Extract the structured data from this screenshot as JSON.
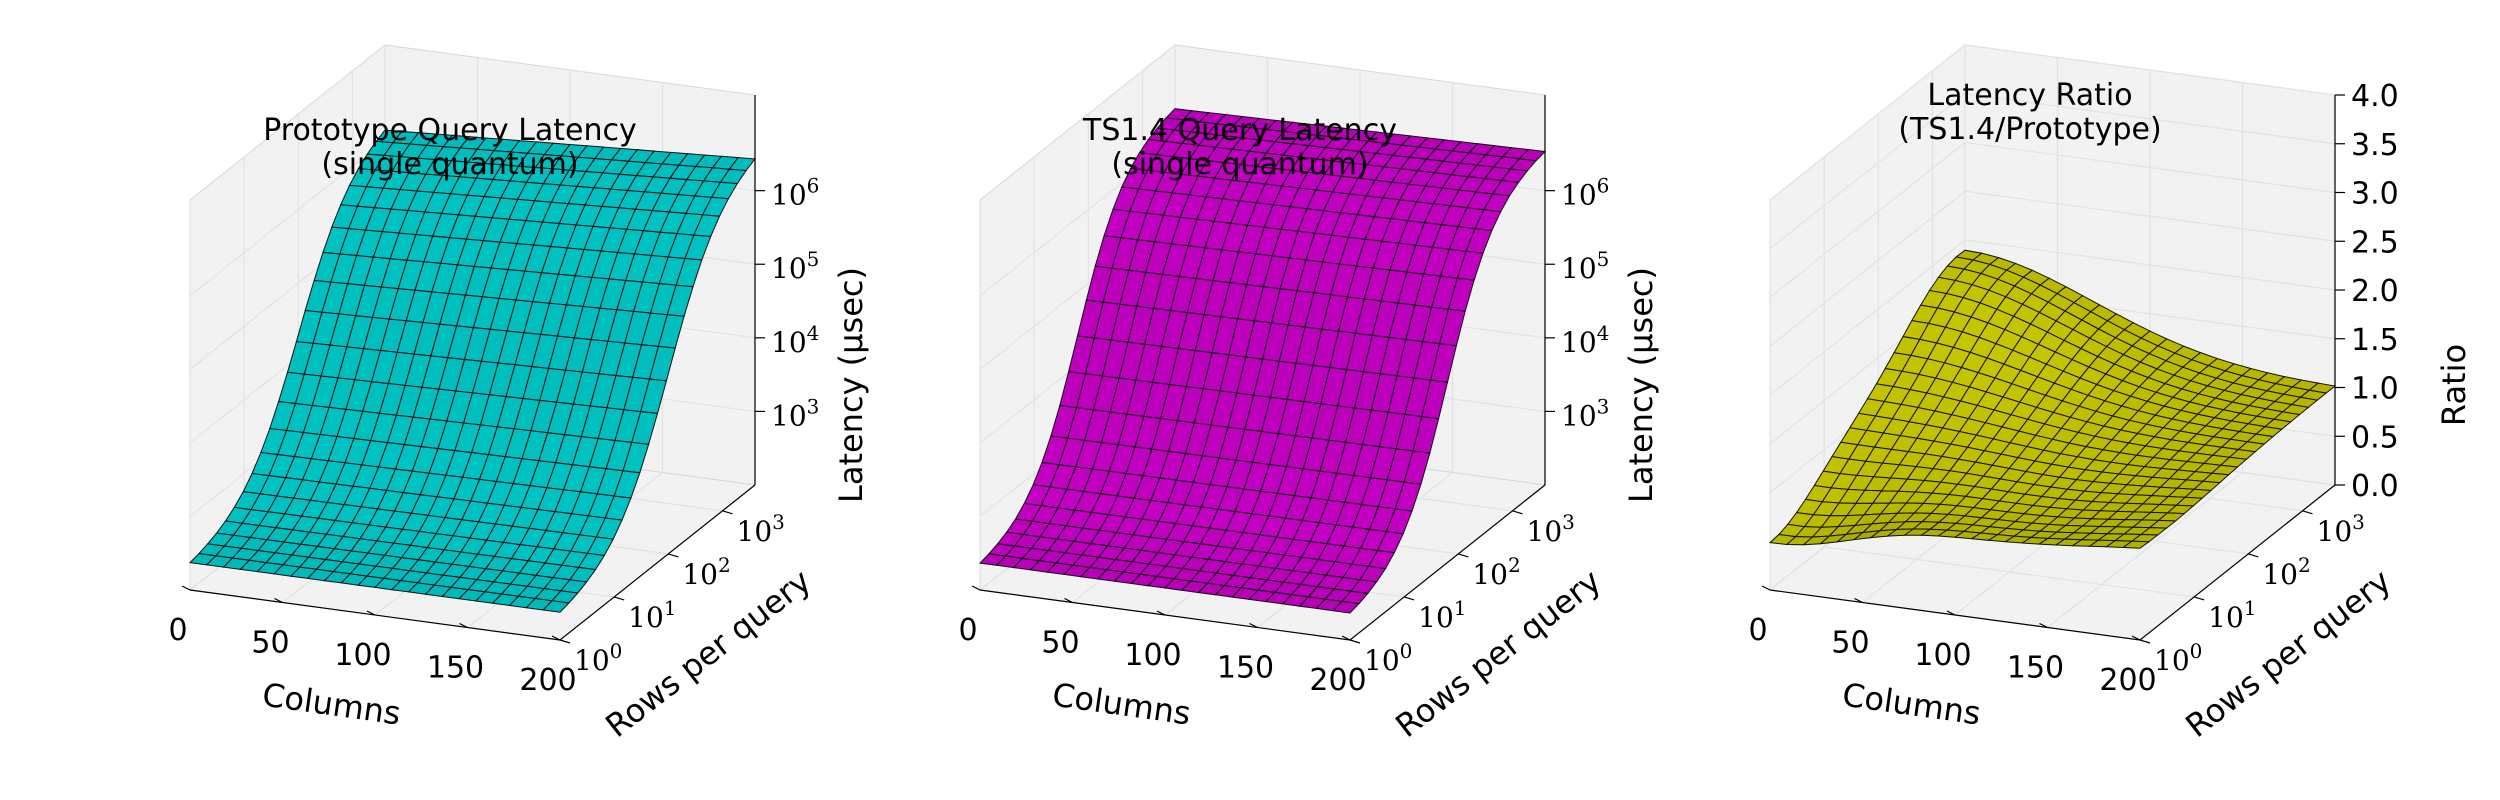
{
  "chart_data": [
    {
      "type": "surface",
      "title_lines": [
        "Prototype Query Latency",
        "(single quantum)"
      ],
      "xlabel": "Columns",
      "ylabel": "Rows per query",
      "zlabel": "Latency (μsec)",
      "x_ticks": [
        "0",
        "50",
        "100",
        "150",
        "200"
      ],
      "y_ticks": [
        {
          "base": "10",
          "exp": "0"
        },
        {
          "base": "10",
          "exp": "1"
        },
        {
          "base": "10",
          "exp": "2"
        },
        {
          "base": "10",
          "exp": "3"
        }
      ],
      "z_ticks": [
        {
          "base": "10",
          "exp": "3"
        },
        {
          "base": "10",
          "exp": "4"
        },
        {
          "base": "10",
          "exp": "5"
        },
        {
          "base": "10",
          "exp": "6"
        }
      ],
      "xlim": [
        0,
        200
      ],
      "ylim_log10": [
        0,
        3.6
      ],
      "zlim_log10": [
        2.0,
        7.3
      ],
      "z_scale": "log",
      "y_scale": "log",
      "surface_color": "#00c0c0",
      "grid": true,
      "surface_model": {
        "kind": "sigmoid",
        "center_log10_rows": 2.0,
        "steepness": 2.0,
        "low_log10_latency": 2.3,
        "high_log10_latency_at_0_cols": 6.3,
        "high_log10_latency_at_200_cols": 6.6
      }
    },
    {
      "type": "surface",
      "title_lines": [
        "TS1.4 Query Latency",
        "(single quantum)"
      ],
      "xlabel": "Columns",
      "ylabel": "Rows per query",
      "zlabel": "Latency (μsec)",
      "x_ticks": [
        "0",
        "50",
        "100",
        "150",
        "200"
      ],
      "y_ticks": [
        {
          "base": "10",
          "exp": "0"
        },
        {
          "base": "10",
          "exp": "1"
        },
        {
          "base": "10",
          "exp": "2"
        },
        {
          "base": "10",
          "exp": "3"
        }
      ],
      "z_ticks": [
        {
          "base": "10",
          "exp": "3"
        },
        {
          "base": "10",
          "exp": "4"
        },
        {
          "base": "10",
          "exp": "5"
        },
        {
          "base": "10",
          "exp": "6"
        }
      ],
      "xlim": [
        0,
        200
      ],
      "ylim_log10": [
        0,
        3.6
      ],
      "zlim_log10": [
        2.0,
        7.3
      ],
      "z_scale": "log",
      "y_scale": "log",
      "surface_color": "#c000c0",
      "grid": true,
      "surface_model": {
        "kind": "sigmoid",
        "center_log10_rows": 1.8,
        "steepness": 2.3,
        "low_log10_latency": 2.3,
        "high_log10_latency_at_0_cols": 6.5,
        "high_log10_latency_at_200_cols": 6.6
      }
    },
    {
      "type": "surface",
      "title_lines": [
        "Latency Ratio",
        "(TS1.4/Prototype)"
      ],
      "xlabel": "Columns",
      "ylabel": "Rows per query",
      "zlabel": "Ratio",
      "x_ticks": [
        "0",
        "50",
        "100",
        "150",
        "200"
      ],
      "y_ticks": [
        {
          "base": "10",
          "exp": "0"
        },
        {
          "base": "10",
          "exp": "1"
        },
        {
          "base": "10",
          "exp": "2"
        },
        {
          "base": "10",
          "exp": "3"
        }
      ],
      "z_ticks": [
        "0.0",
        "0.5",
        "1.0",
        "1.5",
        "2.0",
        "2.5",
        "3.0",
        "3.5",
        "4.0"
      ],
      "xlim": [
        0,
        200
      ],
      "ylim_log10": [
        0,
        3.6
      ],
      "zlim": [
        0,
        4.0
      ],
      "z_scale": "linear",
      "y_scale": "log",
      "surface_color": "#c0c000",
      "grid": true,
      "surface_model": {
        "kind": "ratio",
        "base": 1.0,
        "corner_low_cols_low_rows": 0.5,
        "peak_value": 1.9,
        "peak_at_cols": 0,
        "peak_at_log10_rows": 3.5,
        "valley_value": 0.8,
        "valley_at_cols": 120,
        "valley_at_log10_rows": 0.5
      }
    }
  ]
}
